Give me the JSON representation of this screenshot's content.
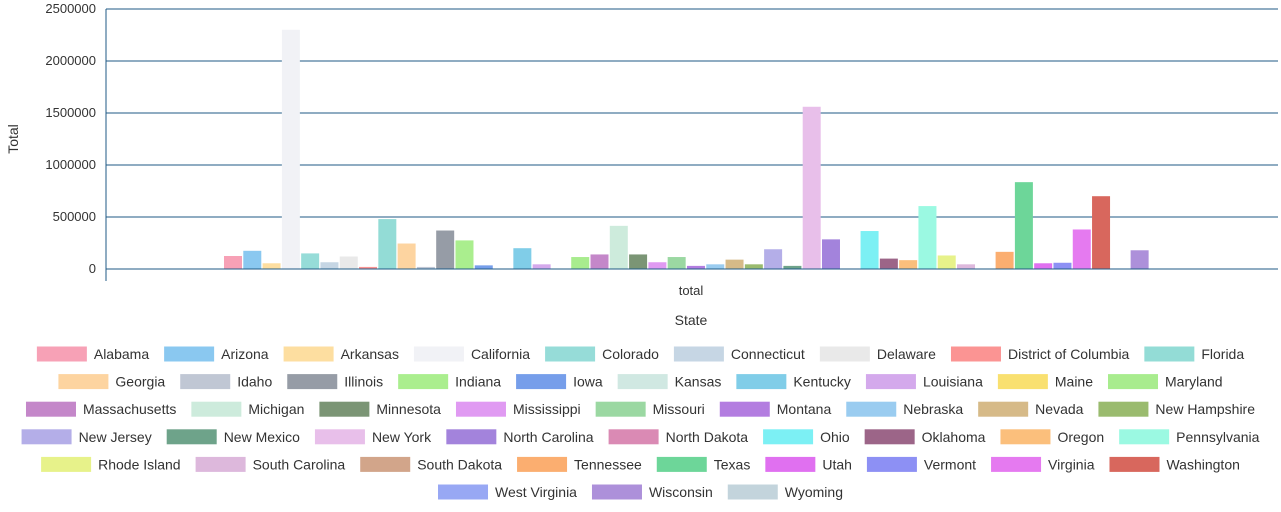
{
  "chart_data": {
    "type": "bar",
    "categories": [
      "total"
    ],
    "xlabel": "State",
    "ylabel": "Total",
    "ylim": [
      0,
      2500000
    ],
    "yticks": [
      "0",
      "500000",
      "1000000",
      "1500000",
      "2000000",
      "2500000"
    ],
    "grid": true,
    "legend_position": "bottom",
    "series": [
      {
        "name": "Alabama",
        "values": [
          125000
        ],
        "color": "#f7a1b6"
      },
      {
        "name": "Arizona",
        "values": [
          175000
        ],
        "color": "#8ac8f0"
      },
      {
        "name": "Arkansas",
        "values": [
          55000
        ],
        "color": "#fddea0"
      },
      {
        "name": "California",
        "values": [
          2300000
        ],
        "color": "#f1f2f6"
      },
      {
        "name": "Colorado",
        "values": [
          150000
        ],
        "color": "#96dcd8"
      },
      {
        "name": "Connecticut",
        "values": [
          65000
        ],
        "color": "#c6d6e4"
      },
      {
        "name": "Delaware",
        "values": [
          120000
        ],
        "color": "#e9e9e9"
      },
      {
        "name": "District of Columbia",
        "values": [
          20000
        ],
        "color": "#fb9493"
      },
      {
        "name": "Florida",
        "values": [
          480000
        ],
        "color": "#93dcd6"
      },
      {
        "name": "Georgia",
        "values": [
          245000
        ],
        "color": "#fdd4a0"
      },
      {
        "name": "Idaho",
        "values": [
          20000
        ],
        "color": "#c0c7d4"
      },
      {
        "name": "Illinois",
        "values": [
          370000
        ],
        "color": "#969ca6"
      },
      {
        "name": "Indiana",
        "values": [
          275000
        ],
        "color": "#aaee8e"
      },
      {
        "name": "Iowa",
        "values": [
          35000
        ],
        "color": "#769eea"
      },
      {
        "name": "Kansas",
        "values": [
          5000
        ],
        "color": "#d0e8e2"
      },
      {
        "name": "Kentucky",
        "values": [
          200000
        ],
        "color": "#80cde8"
      },
      {
        "name": "Louisiana",
        "values": [
          45000
        ],
        "color": "#d4a9ec"
      },
      {
        "name": "Maine",
        "values": [
          5000
        ],
        "color": "#f9e070"
      },
      {
        "name": "Maryland",
        "values": [
          115000
        ],
        "color": "#a8ec8e"
      },
      {
        "name": "Massachusetts",
        "values": [
          140000
        ],
        "color": "#c487c9"
      },
      {
        "name": "Michigan",
        "values": [
          415000
        ],
        "color": "#cdebdc"
      },
      {
        "name": "Minnesota",
        "values": [
          140000
        ],
        "color": "#7b9575"
      },
      {
        "name": "Mississippi",
        "values": [
          65000
        ],
        "color": "#e09af2"
      },
      {
        "name": "Missouri",
        "values": [
          115000
        ],
        "color": "#9bd8a2"
      },
      {
        "name": "Montana",
        "values": [
          30000
        ],
        "color": "#b37de0"
      },
      {
        "name": "Nebraska",
        "values": [
          45000
        ],
        "color": "#9accf0"
      },
      {
        "name": "Nevada",
        "values": [
          90000
        ],
        "color": "#d6ba88"
      },
      {
        "name": "New Hampshire",
        "values": [
          45000
        ],
        "color": "#9abb6e"
      },
      {
        "name": "New Jersey",
        "values": [
          190000
        ],
        "color": "#b4aee8"
      },
      {
        "name": "New Mexico",
        "values": [
          30000
        ],
        "color": "#6ea38a"
      },
      {
        "name": "New York",
        "values": [
          1560000
        ],
        "color": "#e8bfea"
      },
      {
        "name": "North Carolina",
        "values": [
          285000
        ],
        "color": "#a383dc"
      },
      {
        "name": "North Dakota",
        "values": [
          5000
        ],
        "color": "#da8ab4"
      },
      {
        "name": "Ohio",
        "values": [
          365000
        ],
        "color": "#7cf0f4"
      },
      {
        "name": "Oklahoma",
        "values": [
          100000
        ],
        "color": "#9c6588"
      },
      {
        "name": "Oregon",
        "values": [
          85000
        ],
        "color": "#fbbf7c"
      },
      {
        "name": "Pennsylvania",
        "values": [
          605000
        ],
        "color": "#9bf9e2"
      },
      {
        "name": "Rhode Island",
        "values": [
          130000
        ],
        "color": "#e7f28a"
      },
      {
        "name": "South Carolina",
        "values": [
          45000
        ],
        "color": "#ddb8dc"
      },
      {
        "name": "South Dakota",
        "values": [
          5000
        ],
        "color": "#d2a58a"
      },
      {
        "name": "Tennessee",
        "values": [
          165000
        ],
        "color": "#fbae70"
      },
      {
        "name": "Texas",
        "values": [
          835000
        ],
        "color": "#6dd699"
      },
      {
        "name": "Utah",
        "values": [
          55000
        ],
        "color": "#e070f0"
      },
      {
        "name": "Vermont",
        "values": [
          60000
        ],
        "color": "#8d90f4"
      },
      {
        "name": "Virginia",
        "values": [
          380000
        ],
        "color": "#e57af0"
      },
      {
        "name": "Washington",
        "values": [
          700000
        ],
        "color": "#d8675d"
      },
      {
        "name": "West Virginia",
        "values": [
          5000
        ],
        "color": "#98a8f4"
      },
      {
        "name": "Wisconsin",
        "values": [
          180000
        ],
        "color": "#ad90da"
      },
      {
        "name": "Wyoming",
        "values": [
          5000
        ],
        "color": "#c3d4dc"
      }
    ]
  }
}
